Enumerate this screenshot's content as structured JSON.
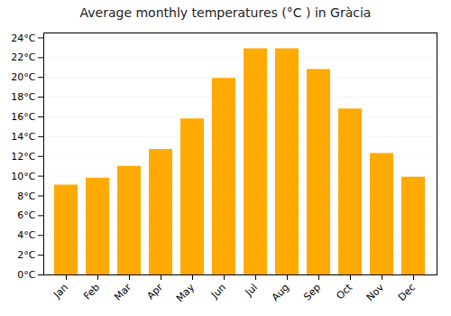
{
  "chart_data": {
    "type": "bar",
    "title": "Average monthly temperatures (°C ) in Gràcia",
    "categories": [
      "Jan",
      "Feb",
      "Mar",
      "Apr",
      "May",
      "Jun",
      "Jul",
      "Aug",
      "Sep",
      "Oct",
      "Nov",
      "Dec"
    ],
    "values": [
      9.1,
      9.8,
      11.0,
      12.7,
      15.8,
      19.9,
      22.9,
      22.9,
      20.8,
      16.8,
      12.3,
      9.9
    ],
    "color": "#FFAA00",
    "ylim": [
      0,
      24.5
    ],
    "yticks": [
      {
        "value": 0,
        "label": "0°C"
      },
      {
        "value": 2,
        "label": "2°C"
      },
      {
        "value": 4,
        "label": "4°C"
      },
      {
        "value": 6,
        "label": "6°C"
      },
      {
        "value": 8,
        "label": "8°C"
      },
      {
        "value": 10,
        "label": "10°C"
      },
      {
        "value": 12,
        "label": "12°C"
      },
      {
        "value": 14,
        "label": "14°C"
      },
      {
        "value": 16,
        "label": "16°C"
      },
      {
        "value": 18,
        "label": "18°C"
      },
      {
        "value": 20,
        "label": "20°C"
      },
      {
        "value": 22,
        "label": "22°C"
      },
      {
        "value": 24,
        "label": "24°C"
      }
    ],
    "grid": true
  }
}
